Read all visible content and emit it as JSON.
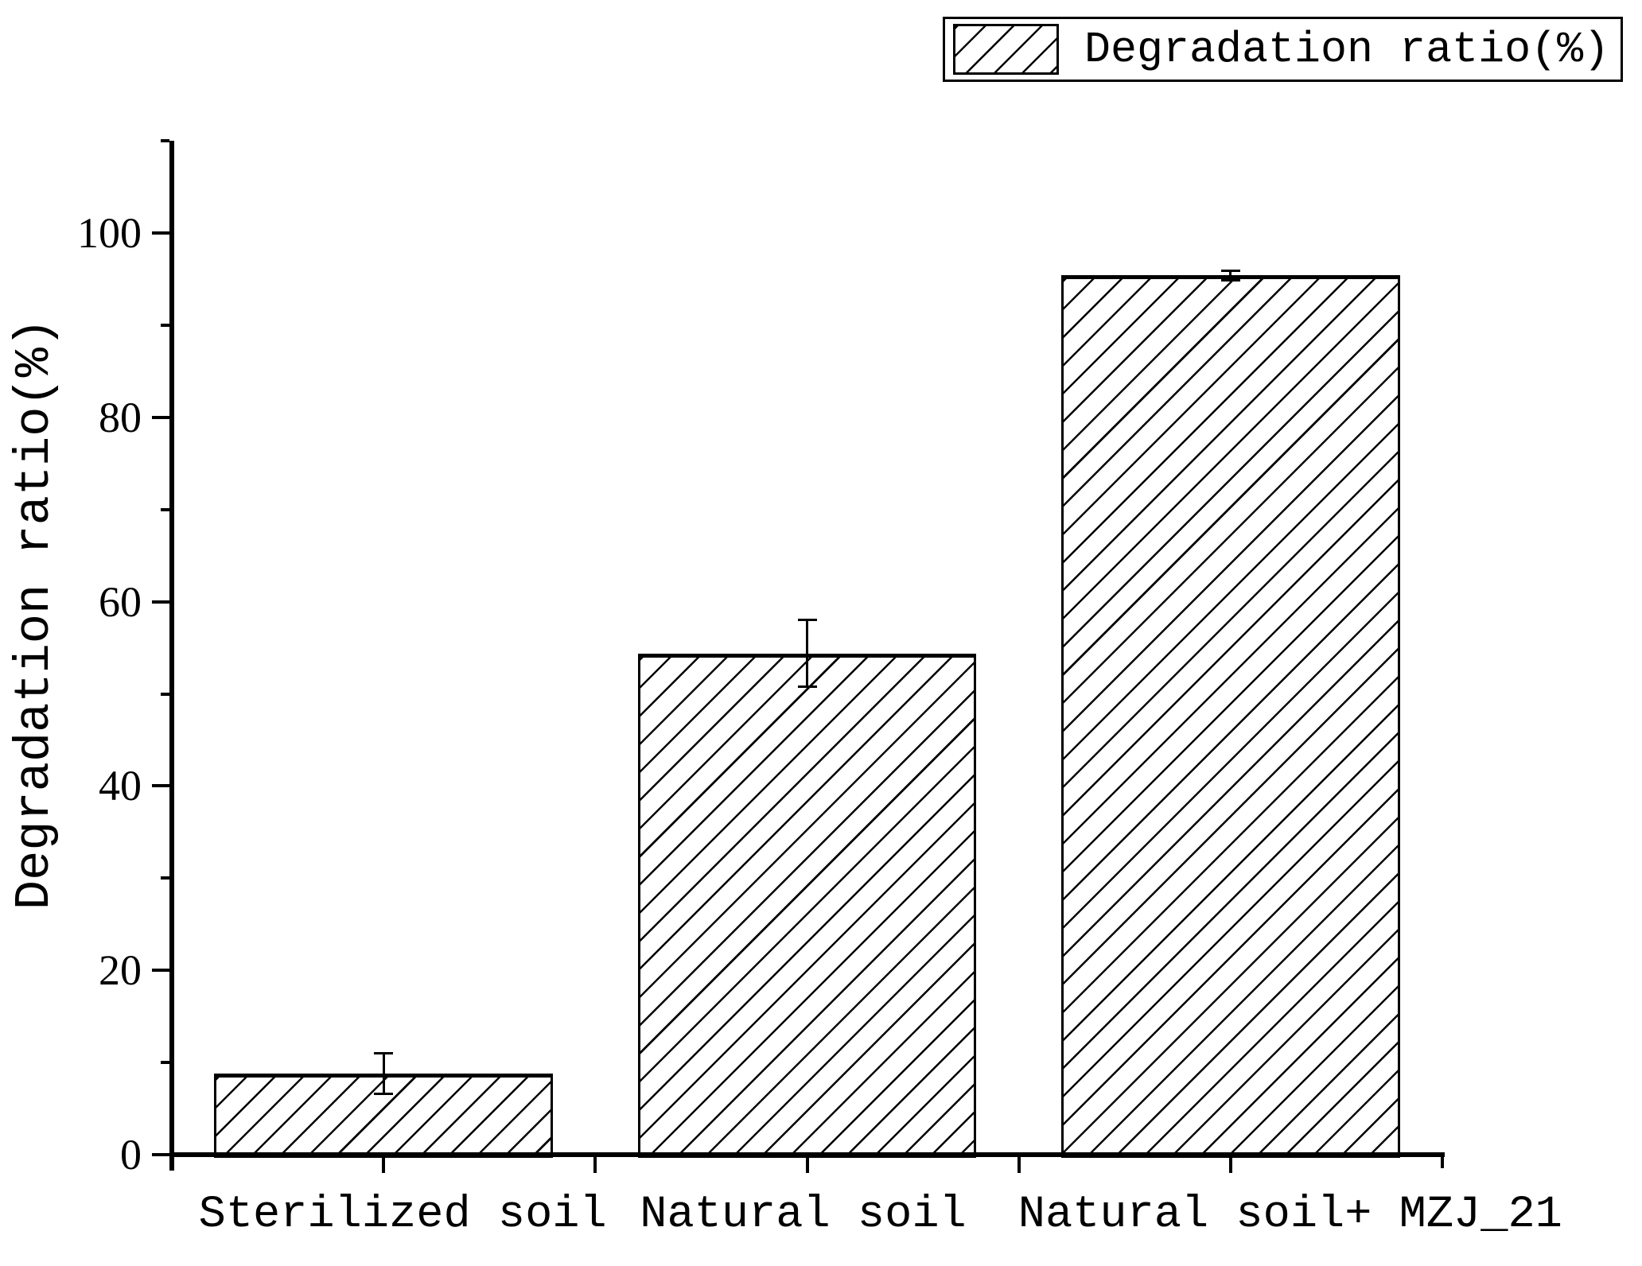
{
  "figure": {
    "background": "#ffffff",
    "foreground": "#000000",
    "title": ""
  },
  "legend": {
    "entries": [
      {
        "label": "Degradation ratio(%)",
        "swatch": "diagonal-hatch-swatch"
      }
    ],
    "position": "top-right",
    "border": true
  },
  "chart_data": {
    "type": "bar",
    "title": "",
    "xlabel": "",
    "ylabel": "Degradation ratio(%)",
    "categories": [
      "Sterilized soil",
      "Natural soil",
      "Natural soil+ MZJ_21"
    ],
    "series": [
      {
        "name": "Degradation ratio(%)",
        "values": [
          8.8,
          54.4,
          95.4
        ],
        "errors": [
          2.2,
          3.6,
          0.5
        ]
      }
    ],
    "ylim": [
      0,
      110
    ],
    "yticks_major": [
      0,
      20,
      40,
      60,
      80,
      100
    ],
    "yticks_minor": [
      10,
      30,
      50,
      70,
      90,
      110
    ],
    "grid": false,
    "legend_position": "top-right",
    "bar_style": {
      "fill": "#ffffff",
      "hatch": "forward-diagonal",
      "edge_color": "#000000"
    },
    "error_bar_style": "caps-both-ends"
  }
}
